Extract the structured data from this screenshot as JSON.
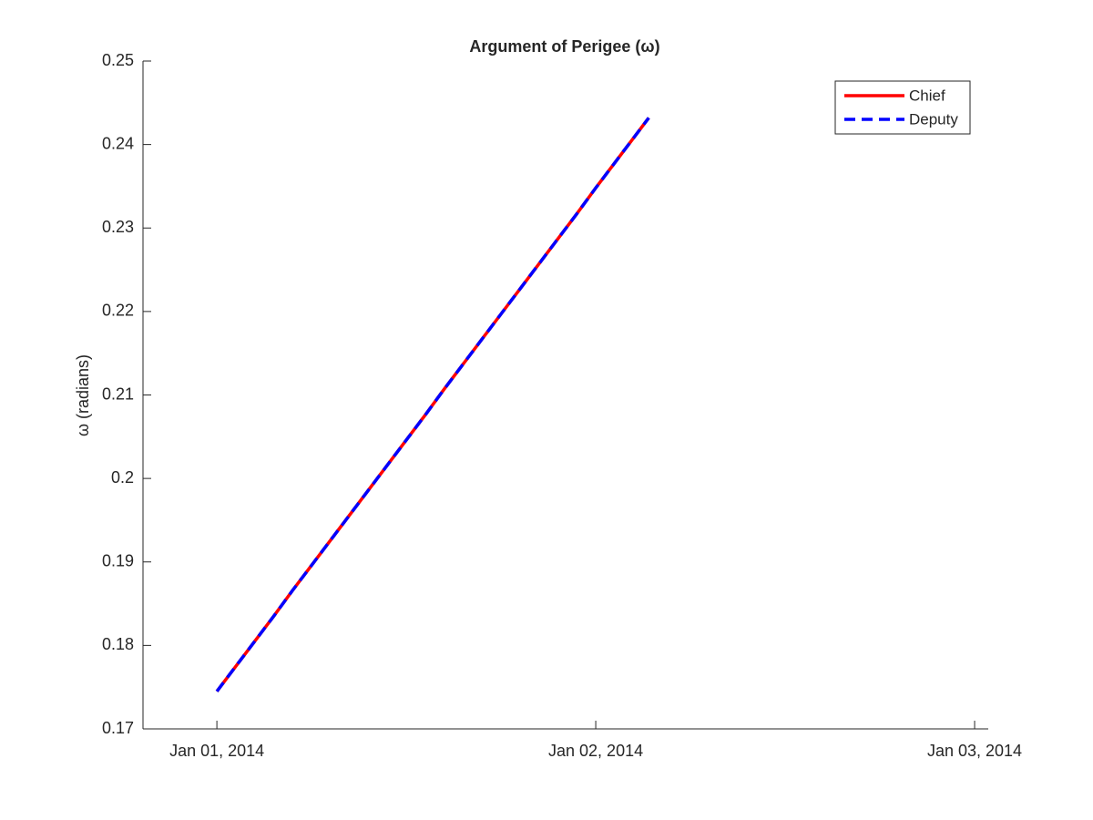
{
  "chart_data": {
    "type": "line",
    "title": "Argument of Perigee (ω)",
    "y_label": "ω (radians)",
    "x": [
      0,
      0.05,
      0.1,
      0.15,
      0.2,
      0.25,
      0.3,
      0.35,
      0.4,
      0.45,
      0.5,
      0.55,
      0.6,
      0.65,
      0.7,
      0.75,
      0.8,
      0.85,
      0.9,
      0.95,
      1.0,
      1.05,
      1.1,
      1.14
    ],
    "series": [
      {
        "name": "Chief",
        "color": "#ff0000",
        "dash": "solid",
        "values": [
          0.1745,
          0.1775,
          0.1805,
          0.1835,
          0.1866,
          0.1896,
          0.1926,
          0.1956,
          0.1986,
          0.2016,
          0.2046,
          0.2076,
          0.2107,
          0.2137,
          0.2167,
          0.2197,
          0.2227,
          0.2257,
          0.2287,
          0.2317,
          0.2348,
          0.2378,
          0.2408,
          0.2432
        ]
      },
      {
        "name": "Deputy",
        "color": "#0000ff",
        "dash": "dashed",
        "values": [
          0.1745,
          0.1775,
          0.1805,
          0.1835,
          0.1866,
          0.1896,
          0.1926,
          0.1956,
          0.1986,
          0.2016,
          0.2046,
          0.2076,
          0.2107,
          0.2137,
          0.2167,
          0.2197,
          0.2227,
          0.2257,
          0.2287,
          0.2317,
          0.2348,
          0.2378,
          0.2408,
          0.2432
        ]
      }
    ],
    "xlim": [
      -0.195,
      2.036
    ],
    "xticks": [
      {
        "value": 0,
        "label": "Jan 01, 2014"
      },
      {
        "value": 1,
        "label": "Jan 02, 2014"
      },
      {
        "value": 2,
        "label": "Jan 03, 2014"
      }
    ],
    "ylim": [
      0.17,
      0.25
    ],
    "yticks": [
      0.17,
      0.18,
      0.19,
      0.2,
      0.21,
      0.22,
      0.23,
      0.24,
      0.25
    ],
    "grid": false,
    "legend": "upper right"
  }
}
